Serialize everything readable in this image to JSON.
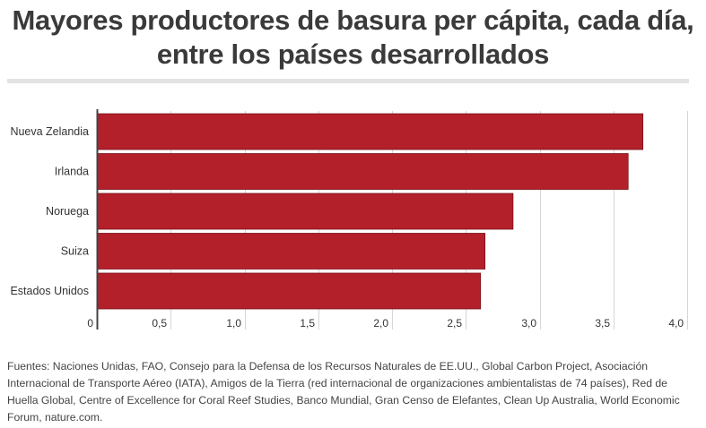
{
  "title": {
    "line1": "Mayores productores de basura per cápita, cada día,",
    "line2": "entre los países desarrollados"
  },
  "source": "Fuentes: Naciones Unidas, FAO, Consejo para la Defensa de los Recursos Naturales de EE.UU., Global Carbon Project, Asociación Internacional de Transporte Aéreo (IATA), Amigos de la Tierra (red internacional de organizaciones ambientalistas de 74 países), Red de Huella Global, Centre of Excellence for Coral Reef Studies, Banco Mundial, Gran Censo de Elefantes, Clean Up Australia, World Economic Forum, nature.com.",
  "colors": {
    "bar": "#b3202a",
    "grid": "#d6d6d6",
    "axis": "#444444"
  },
  "chart_data": {
    "type": "bar",
    "orientation": "horizontal",
    "categories": [
      "Nueva Zelandia",
      "Irlanda",
      "Noruega",
      "Suiza",
      "Estados Unidos"
    ],
    "values": [
      3.7,
      3.6,
      2.82,
      2.63,
      2.6
    ],
    "xlim": [
      0,
      4.0
    ],
    "xticks": [
      0,
      0.5,
      1.0,
      1.5,
      2.0,
      2.5,
      3.0,
      3.5,
      4.0
    ],
    "xtick_labels": [
      "0",
      "0,5",
      "1,0",
      "1,5",
      "2,0",
      "2,5",
      "3,0",
      "3,5",
      "4,0"
    ],
    "grid": true,
    "xlabel": "",
    "ylabel": ""
  }
}
